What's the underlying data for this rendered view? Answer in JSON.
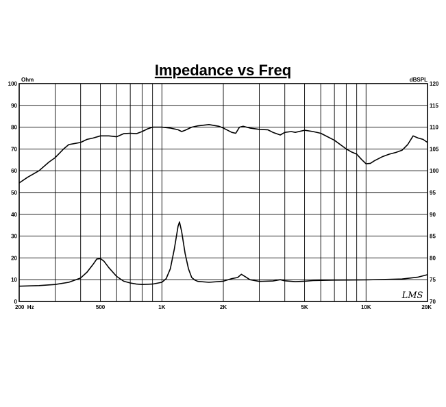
{
  "chart_data": {
    "type": "line",
    "title": "Impedance vs Freq",
    "x_scale": "log",
    "xlim": [
      200,
      20000
    ],
    "x_tick_values": [
      200,
      500,
      1000,
      2000,
      5000,
      10000,
      20000
    ],
    "x_tick_labels": [
      "200  Hz",
      "500",
      "1K",
      "2K",
      "5K",
      "10K",
      "20K"
    ],
    "left_axis": {
      "unit_label": "Ohm",
      "range": [
        0,
        100
      ],
      "ticks": [
        "0",
        "10",
        "20",
        "30",
        "40",
        "50",
        "60",
        "70",
        "80",
        "90",
        "100"
      ]
    },
    "right_axis": {
      "unit_label": "dBSPL",
      "range": [
        70,
        120
      ],
      "ticks": [
        "70",
        "75",
        "80",
        "85",
        "90",
        "95",
        "100",
        "105",
        "110",
        "115",
        "120"
      ]
    },
    "grid": true,
    "watermark": "LMS",
    "series": [
      {
        "axis": "right",
        "values": [
          [
            200,
            97.2
          ],
          [
            220,
            98.5
          ],
          [
            250,
            100.0
          ],
          [
            280,
            102.0
          ],
          [
            300,
            103.0
          ],
          [
            330,
            105.0
          ],
          [
            350,
            106.0
          ],
          [
            380,
            106.3
          ],
          [
            400,
            106.5
          ],
          [
            430,
            107.2
          ],
          [
            460,
            107.5
          ],
          [
            500,
            108.0
          ],
          [
            550,
            108.0
          ],
          [
            600,
            107.8
          ],
          [
            650,
            108.5
          ],
          [
            700,
            108.6
          ],
          [
            750,
            108.5
          ],
          [
            800,
            109.0
          ],
          [
            850,
            109.6
          ],
          [
            900,
            110.0
          ],
          [
            950,
            110.0
          ],
          [
            1000,
            110.0
          ],
          [
            1100,
            109.8
          ],
          [
            1200,
            109.4
          ],
          [
            1250,
            109.0
          ],
          [
            1300,
            109.3
          ],
          [
            1400,
            110.0
          ],
          [
            1500,
            110.3
          ],
          [
            1700,
            110.6
          ],
          [
            1900,
            110.2
          ],
          [
            2000,
            109.8
          ],
          [
            2200,
            108.8
          ],
          [
            2300,
            108.6
          ],
          [
            2400,
            110.0
          ],
          [
            2500,
            110.2
          ],
          [
            2700,
            109.8
          ],
          [
            3000,
            109.5
          ],
          [
            3300,
            109.4
          ],
          [
            3500,
            108.8
          ],
          [
            3800,
            108.2
          ],
          [
            4000,
            108.8
          ],
          [
            4300,
            109.0
          ],
          [
            4500,
            108.8
          ],
          [
            5000,
            109.3
          ],
          [
            5500,
            109.0
          ],
          [
            6000,
            108.6
          ],
          [
            7000,
            107.0
          ],
          [
            8000,
            105.0
          ],
          [
            8500,
            104.3
          ],
          [
            9000,
            103.8
          ],
          [
            9500,
            102.6
          ],
          [
            10000,
            101.6
          ],
          [
            10500,
            101.7
          ],
          [
            11000,
            102.3
          ],
          [
            12000,
            103.2
          ],
          [
            13000,
            103.8
          ],
          [
            14000,
            104.2
          ],
          [
            15000,
            104.7
          ],
          [
            16000,
            106.0
          ],
          [
            17000,
            108.0
          ],
          [
            18000,
            107.5
          ],
          [
            19000,
            107.2
          ],
          [
            20000,
            106.5
          ]
        ]
      },
      {
        "axis": "left",
        "values": [
          [
            200,
            7.0
          ],
          [
            250,
            7.3
          ],
          [
            300,
            7.8
          ],
          [
            350,
            8.8
          ],
          [
            400,
            10.8
          ],
          [
            430,
            13.5
          ],
          [
            460,
            17.0
          ],
          [
            480,
            19.5
          ],
          [
            500,
            19.7
          ],
          [
            520,
            18.5
          ],
          [
            550,
            15.5
          ],
          [
            600,
            11.5
          ],
          [
            650,
            9.3
          ],
          [
            700,
            8.5
          ],
          [
            750,
            8.0
          ],
          [
            800,
            7.8
          ],
          [
            900,
            8.0
          ],
          [
            1000,
            8.8
          ],
          [
            1050,
            10.5
          ],
          [
            1100,
            15.0
          ],
          [
            1150,
            24.0
          ],
          [
            1200,
            34.5
          ],
          [
            1220,
            36.5
          ],
          [
            1250,
            32.0
          ],
          [
            1300,
            22.0
          ],
          [
            1350,
            15.0
          ],
          [
            1400,
            11.0
          ],
          [
            1450,
            9.8
          ],
          [
            1500,
            9.2
          ],
          [
            1700,
            8.8
          ],
          [
            2000,
            9.3
          ],
          [
            2200,
            10.5
          ],
          [
            2350,
            11.0
          ],
          [
            2450,
            12.5
          ],
          [
            2550,
            11.5
          ],
          [
            2700,
            10.0
          ],
          [
            3000,
            9.2
          ],
          [
            3500,
            9.4
          ],
          [
            3800,
            10.0
          ],
          [
            4000,
            9.5
          ],
          [
            4500,
            9.1
          ],
          [
            5000,
            9.3
          ],
          [
            5500,
            9.6
          ],
          [
            7000,
            9.8
          ],
          [
            10000,
            9.9
          ],
          [
            15000,
            10.3
          ],
          [
            18000,
            11.2
          ],
          [
            20000,
            12.3
          ]
        ]
      }
    ]
  }
}
